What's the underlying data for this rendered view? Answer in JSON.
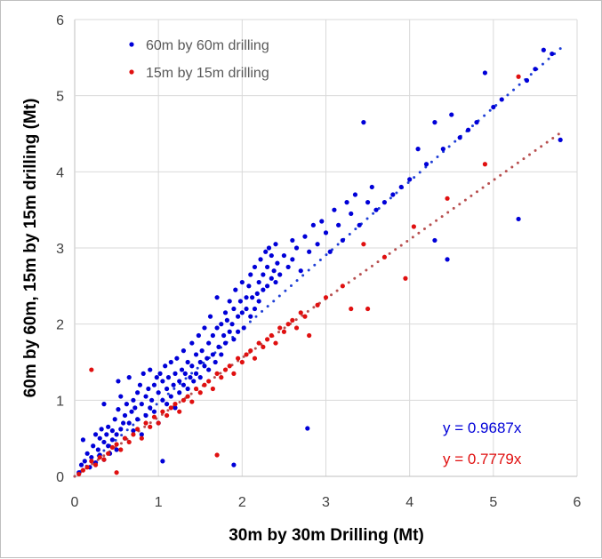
{
  "chart_data": {
    "type": "scatter",
    "xlabel": "30m by 30m Drilling (Mt)",
    "ylabel": "60m by 60m, 15m by 15m drilling (Mt)",
    "xlim": [
      0,
      6
    ],
    "ylim": [
      0,
      6
    ],
    "x_ticks": [
      "0",
      "1",
      "2",
      "3",
      "4",
      "5",
      "6"
    ],
    "y_ticks": [
      "0",
      "1",
      "2",
      "3",
      "4",
      "5",
      "6"
    ],
    "grid": true,
    "legend_position": "top-left",
    "series": [
      {
        "name": "60m by 60m drilling",
        "color": "#0000d8",
        "trend_slope": 0.9687,
        "trend_label": "y = 0.9687x",
        "points": [
          [
            0.05,
            0.05
          ],
          [
            0.08,
            0.15
          ],
          [
            0.1,
            0.48
          ],
          [
            0.12,
            0.2
          ],
          [
            0.15,
            0.3
          ],
          [
            0.18,
            0.12
          ],
          [
            0.2,
            0.25
          ],
          [
            0.22,
            0.4
          ],
          [
            0.25,
            0.55
          ],
          [
            0.25,
            0.18
          ],
          [
            0.28,
            0.35
          ],
          [
            0.3,
            0.5
          ],
          [
            0.3,
            0.28
          ],
          [
            0.32,
            0.62
          ],
          [
            0.35,
            0.45
          ],
          [
            0.35,
            0.22
          ],
          [
            0.38,
            0.55
          ],
          [
            0.4,
            0.4
          ],
          [
            0.4,
            0.65
          ],
          [
            0.42,
            0.3
          ],
          [
            0.45,
            0.6
          ],
          [
            0.45,
            0.48
          ],
          [
            0.48,
            0.75
          ],
          [
            0.5,
            0.55
          ],
          [
            0.5,
            0.35
          ],
          [
            0.52,
            0.88
          ],
          [
            0.55,
            0.62
          ],
          [
            0.55,
            1.05
          ],
          [
            0.58,
            0.7
          ],
          [
            0.6,
            0.5
          ],
          [
            0.6,
            0.8
          ],
          [
            0.62,
            0.95
          ],
          [
            0.65,
            0.7
          ],
          [
            0.65,
            1.3
          ],
          [
            0.68,
            0.85
          ],
          [
            0.7,
            1.0
          ],
          [
            0.7,
            0.6
          ],
          [
            0.72,
            0.9
          ],
          [
            0.75,
            1.1
          ],
          [
            0.75,
            0.75
          ],
          [
            0.78,
            1.2
          ],
          [
            0.8,
            0.95
          ],
          [
            0.8,
            0.55
          ],
          [
            0.82,
            1.35
          ],
          [
            0.85,
            1.05
          ],
          [
            0.85,
            0.8
          ],
          [
            0.88,
            1.15
          ],
          [
            0.9,
            0.9
          ],
          [
            0.9,
            1.4
          ],
          [
            0.92,
            1.0
          ],
          [
            0.95,
            1.2
          ],
          [
            0.95,
            0.85
          ],
          [
            0.98,
            1.3
          ],
          [
            1.0,
            1.1
          ],
          [
            1.0,
            0.7
          ],
          [
            1.02,
            1.35
          ],
          [
            1.05,
            1.0
          ],
          [
            1.05,
            1.25
          ],
          [
            1.08,
            1.45
          ],
          [
            1.1,
            1.15
          ],
          [
            1.1,
            0.95
          ],
          [
            1.12,
            1.3
          ],
          [
            1.15,
            1.05
          ],
          [
            1.15,
            1.5
          ],
          [
            1.18,
            1.2
          ],
          [
            1.2,
            1.35
          ],
          [
            1.2,
            0.9
          ],
          [
            1.22,
            1.55
          ],
          [
            1.25,
            1.25
          ],
          [
            1.25,
            1.1
          ],
          [
            1.28,
            1.4
          ],
          [
            1.3,
            1.2
          ],
          [
            1.3,
            1.65
          ],
          [
            1.32,
            1.35
          ],
          [
            1.35,
            1.15
          ],
          [
            1.35,
            1.5
          ],
          [
            1.38,
            1.3
          ],
          [
            1.4,
            1.75
          ],
          [
            1.4,
            1.45
          ],
          [
            1.42,
            1.25
          ],
          [
            1.45,
            1.6
          ],
          [
            1.45,
            1.35
          ],
          [
            1.48,
            1.85
          ],
          [
            1.5,
            1.5
          ],
          [
            1.5,
            1.3
          ],
          [
            1.52,
            1.65
          ],
          [
            1.55,
            1.45
          ],
          [
            1.55,
            1.95
          ],
          [
            1.58,
            1.55
          ],
          [
            1.6,
            1.75
          ],
          [
            1.6,
            1.4
          ],
          [
            1.62,
            2.1
          ],
          [
            1.65,
            1.6
          ],
          [
            1.65,
            1.85
          ],
          [
            1.68,
            1.5
          ],
          [
            1.7,
            1.95
          ],
          [
            1.7,
            2.35
          ],
          [
            1.72,
            1.7
          ],
          [
            1.75,
            2.0
          ],
          [
            1.75,
            1.6
          ],
          [
            1.78,
            1.85
          ],
          [
            1.8,
            2.15
          ],
          [
            1.8,
            1.75
          ],
          [
            1.82,
            2.05
          ],
          [
            1.85,
            1.9
          ],
          [
            1.85,
            2.3
          ],
          [
            1.88,
            2.0
          ],
          [
            1.9,
            1.8
          ],
          [
            1.9,
            2.2
          ],
          [
            1.92,
            2.45
          ],
          [
            1.95,
            2.1
          ],
          [
            1.95,
            1.9
          ],
          [
            1.98,
            2.3
          ],
          [
            2.0,
            2.15
          ],
          [
            2.0,
            2.55
          ],
          [
            2.02,
            1.95
          ],
          [
            2.05,
            2.35
          ],
          [
            2.05,
            2.2
          ],
          [
            2.08,
            2.5
          ],
          [
            2.1,
            2.1
          ],
          [
            2.1,
            2.65
          ],
          [
            2.12,
            2.35
          ],
          [
            2.15,
            2.2
          ],
          [
            2.15,
            2.75
          ],
          [
            2.18,
            2.4
          ],
          [
            2.2,
            2.55
          ],
          [
            2.2,
            2.3
          ],
          [
            2.22,
            2.85
          ],
          [
            2.25,
            2.45
          ],
          [
            2.25,
            2.65
          ],
          [
            2.28,
            2.95
          ],
          [
            2.3,
            2.5
          ],
          [
            2.3,
            2.75
          ],
          [
            2.32,
            3.0
          ],
          [
            2.35,
            2.6
          ],
          [
            2.35,
            2.9
          ],
          [
            2.38,
            2.7
          ],
          [
            2.4,
            2.55
          ],
          [
            2.4,
            3.05
          ],
          [
            2.42,
            2.8
          ],
          [
            2.45,
            2.65
          ],
          [
            2.5,
            2.9
          ],
          [
            2.55,
            2.75
          ],
          [
            2.6,
            3.1
          ],
          [
            2.6,
            2.85
          ],
          [
            2.65,
            3.0
          ],
          [
            2.7,
            2.7
          ],
          [
            2.75,
            3.15
          ],
          [
            2.8,
            2.95
          ],
          [
            2.85,
            3.3
          ],
          [
            2.9,
            3.05
          ],
          [
            2.95,
            3.35
          ],
          [
            3.0,
            3.2
          ],
          [
            3.05,
            2.95
          ],
          [
            3.1,
            3.5
          ],
          [
            3.15,
            3.3
          ],
          [
            3.2,
            3.1
          ],
          [
            3.25,
            3.6
          ],
          [
            3.3,
            3.45
          ],
          [
            3.35,
            3.7
          ],
          [
            3.4,
            3.3
          ],
          [
            3.45,
            4.65
          ],
          [
            3.5,
            3.6
          ],
          [
            3.55,
            3.8
          ],
          [
            3.6,
            3.5
          ],
          [
            3.7,
            3.6
          ],
          [
            3.8,
            3.7
          ],
          [
            3.9,
            3.8
          ],
          [
            4.0,
            3.9
          ],
          [
            4.1,
            4.3
          ],
          [
            4.2,
            4.1
          ],
          [
            4.3,
            4.65
          ],
          [
            4.4,
            4.3
          ],
          [
            4.5,
            4.75
          ],
          [
            4.6,
            4.45
          ],
          [
            4.7,
            4.55
          ],
          [
            4.8,
            4.65
          ],
          [
            4.9,
            5.3
          ],
          [
            5.0,
            4.85
          ],
          [
            5.1,
            4.95
          ],
          [
            5.3,
            3.38
          ],
          [
            5.4,
            5.2
          ],
          [
            5.5,
            5.35
          ],
          [
            5.6,
            5.6
          ],
          [
            5.7,
            5.55
          ],
          [
            5.8,
            4.42
          ],
          [
            2.78,
            0.63
          ],
          [
            1.9,
            0.15
          ],
          [
            1.05,
            0.2
          ],
          [
            0.35,
            0.95
          ],
          [
            0.52,
            1.25
          ],
          [
            4.45,
            2.85
          ],
          [
            4.3,
            3.1
          ]
        ]
      },
      {
        "name": "15m by 15m drilling",
        "color": "#e01010",
        "trend_slope": 0.7779,
        "trend_label": "y = 0.7779x",
        "points": [
          [
            0.05,
            0.03
          ],
          [
            0.1,
            0.08
          ],
          [
            0.15,
            0.12
          ],
          [
            0.2,
            1.4
          ],
          [
            0.2,
            0.2
          ],
          [
            0.25,
            0.15
          ],
          [
            0.3,
            0.25
          ],
          [
            0.35,
            0.22
          ],
          [
            0.4,
            0.3
          ],
          [
            0.45,
            0.38
          ],
          [
            0.5,
            0.05
          ],
          [
            0.5,
            0.42
          ],
          [
            0.55,
            0.35
          ],
          [
            0.6,
            0.5
          ],
          [
            0.65,
            0.45
          ],
          [
            0.7,
            0.55
          ],
          [
            0.75,
            0.62
          ],
          [
            0.8,
            0.5
          ],
          [
            0.85,
            0.7
          ],
          [
            0.9,
            0.65
          ],
          [
            0.95,
            0.78
          ],
          [
            1.0,
            0.7
          ],
          [
            1.05,
            0.85
          ],
          [
            1.1,
            0.8
          ],
          [
            1.15,
            0.9
          ],
          [
            1.2,
            0.95
          ],
          [
            1.25,
            0.85
          ],
          [
            1.3,
            1.0
          ],
          [
            1.35,
            1.05
          ],
          [
            1.4,
            0.98
          ],
          [
            1.45,
            1.15
          ],
          [
            1.5,
            1.1
          ],
          [
            1.55,
            1.2
          ],
          [
            1.6,
            1.25
          ],
          [
            1.65,
            1.15
          ],
          [
            1.7,
            0.28
          ],
          [
            1.7,
            1.35
          ],
          [
            1.75,
            1.3
          ],
          [
            1.8,
            1.4
          ],
          [
            1.85,
            1.45
          ],
          [
            1.9,
            1.35
          ],
          [
            1.95,
            1.55
          ],
          [
            2.0,
            1.5
          ],
          [
            2.05,
            1.6
          ],
          [
            2.1,
            1.65
          ],
          [
            2.15,
            1.55
          ],
          [
            2.2,
            1.75
          ],
          [
            2.25,
            1.7
          ],
          [
            2.3,
            1.8
          ],
          [
            2.35,
            1.85
          ],
          [
            2.4,
            1.75
          ],
          [
            2.45,
            1.95
          ],
          [
            2.5,
            1.9
          ],
          [
            2.55,
            2.0
          ],
          [
            2.6,
            2.05
          ],
          [
            2.65,
            1.95
          ],
          [
            2.7,
            2.15
          ],
          [
            2.75,
            2.1
          ],
          [
            2.8,
            1.85
          ],
          [
            2.9,
            2.25
          ],
          [
            3.0,
            2.35
          ],
          [
            3.2,
            2.5
          ],
          [
            3.3,
            2.2
          ],
          [
            3.45,
            3.05
          ],
          [
            3.5,
            2.2
          ],
          [
            3.7,
            2.88
          ],
          [
            3.95,
            2.6
          ],
          [
            4.05,
            3.28
          ],
          [
            4.45,
            3.65
          ],
          [
            4.9,
            4.1
          ],
          [
            5.3,
            5.25
          ]
        ]
      }
    ]
  }
}
